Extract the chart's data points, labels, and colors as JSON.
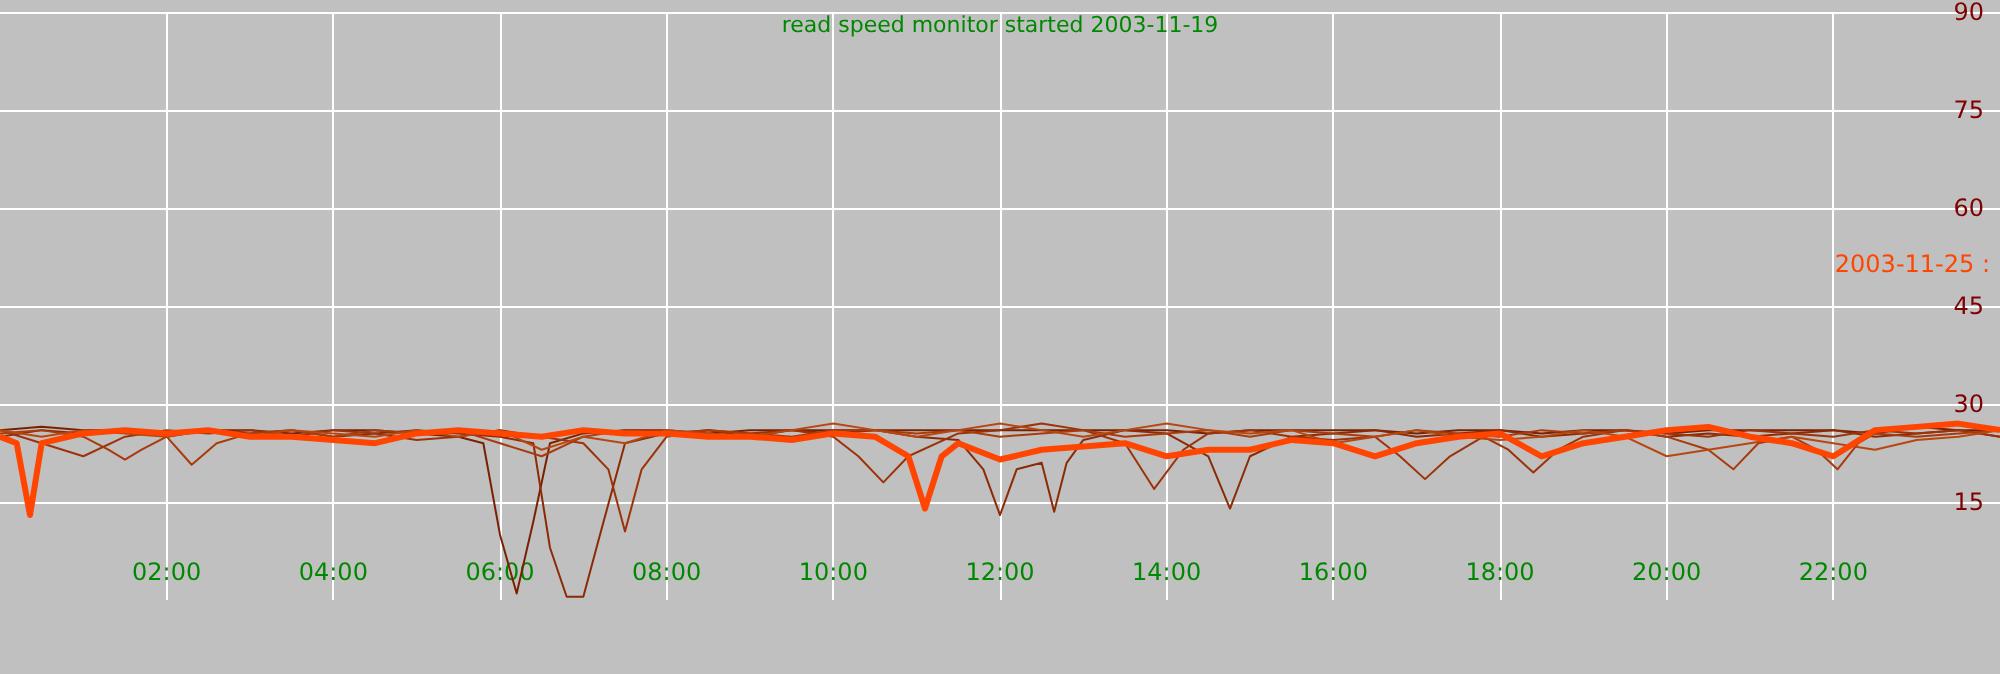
{
  "chart_data": {
    "type": "line",
    "title": "read speed monitor started 2003-11-19",
    "xlim": [
      0,
      24
    ],
    "xticks": [
      {
        "value": 2,
        "label": "02:00"
      },
      {
        "value": 4,
        "label": "04:00"
      },
      {
        "value": 6,
        "label": "06:00"
      },
      {
        "value": 8,
        "label": "08:00"
      },
      {
        "value": 10,
        "label": "10:00"
      },
      {
        "value": 12,
        "label": "12:00"
      },
      {
        "value": 14,
        "label": "14:00"
      },
      {
        "value": 16,
        "label": "16:00"
      },
      {
        "value": 18,
        "label": "18:00"
      },
      {
        "value": 20,
        "label": "20:00"
      },
      {
        "value": 22,
        "label": "22:00"
      }
    ],
    "ylim": [
      0,
      90
    ],
    "yticks": [
      15,
      30,
      45,
      60,
      75,
      90
    ],
    "grid": true,
    "legend": "right",
    "marker": "none",
    "line_style": "solid",
    "series": [
      {
        "color": "#7a2000",
        "x": [
          0,
          0.5,
          1,
          1.5,
          2,
          2.5,
          3,
          3.5,
          4,
          4.5,
          5,
          5.5,
          5.8,
          6.0,
          6.2,
          6.4,
          6.6,
          7,
          7.5,
          8,
          8.5,
          9,
          9.5,
          10,
          10.5,
          11,
          11.5,
          12,
          12.5,
          13,
          13.5,
          14,
          14.5,
          15,
          15.5,
          16,
          16.5,
          17,
          17.5,
          18,
          18.5,
          19,
          19.5,
          20,
          20.5,
          21,
          21.5,
          22,
          22.5,
          23,
          23.5,
          24
        ],
        "values": [
          26,
          26.5,
          26,
          26,
          25.5,
          26,
          26,
          25.5,
          26,
          26,
          25.5,
          25,
          24,
          10,
          1,
          12,
          24,
          25.5,
          26,
          26,
          25.5,
          26,
          26,
          26,
          26,
          26,
          26,
          26,
          26,
          26,
          26,
          26,
          25.5,
          26,
          26,
          26,
          26,
          25.5,
          26,
          26,
          25.5,
          26,
          26,
          25.5,
          26,
          26,
          26,
          26,
          25.5,
          26.5,
          26,
          26
        ]
      },
      {
        "color": "#8b2a05",
        "x": [
          0,
          0.5,
          1,
          1.5,
          2,
          2.5,
          3,
          3.5,
          4,
          4.5,
          5,
          5.5,
          6,
          6.4,
          6.6,
          6.8,
          7.0,
          7.2,
          7.5,
          8,
          8.5,
          9,
          9.5,
          10,
          10.5,
          11,
          11.5,
          11.8,
          12.0,
          12.2,
          12.5,
          12.65,
          12.8,
          13,
          13.5,
          14,
          14.5,
          14.76,
          15,
          15.5,
          16,
          16.5,
          17,
          17.5,
          18,
          18.5,
          19,
          19.5,
          20,
          20.5,
          21,
          21.5,
          22,
          22.5,
          23,
          23.5,
          24
        ],
        "values": [
          25,
          26,
          25.5,
          26,
          25,
          26,
          25.5,
          26,
          25,
          25.5,
          26,
          25.5,
          25,
          24,
          8,
          0.5,
          0.5,
          10,
          24,
          25.5,
          26,
          25,
          26,
          25.5,
          26,
          25,
          24.5,
          20,
          13,
          20,
          21,
          13.5,
          21,
          24.5,
          26,
          25.5,
          22,
          14,
          22,
          25,
          25.5,
          26,
          25,
          25.5,
          26,
          25,
          25.5,
          26,
          25,
          25.5,
          25,
          25.5,
          26,
          25,
          25.5,
          26,
          25
        ]
      },
      {
        "color": "#9c3208",
        "x": [
          0,
          0.5,
          1,
          1.5,
          2,
          2.5,
          3,
          3.5,
          4,
          4.5,
          5,
          5.5,
          6,
          6.5,
          7,
          7.3,
          7.5,
          7.7,
          8,
          8.5,
          9,
          9.5,
          10,
          10.3,
          10.6,
          10.9,
          11.5,
          12,
          12.5,
          13,
          13.5,
          13.85,
          14.2,
          14.5,
          15,
          15.5,
          16,
          16.5,
          16.8,
          17.1,
          17.4,
          17.8,
          18.1,
          18.4,
          18.7,
          19,
          19.5,
          20,
          20.5,
          21,
          21.5,
          22,
          22.5,
          23,
          23.5,
          24
        ],
        "values": [
          26,
          24,
          22,
          25,
          26,
          25.5,
          26,
          25,
          26,
          25.5,
          24.5,
          25,
          26,
          25,
          24,
          20,
          10.5,
          20,
          25,
          26,
          25.5,
          26,
          25,
          22,
          18,
          22,
          25.5,
          26,
          27,
          26,
          24,
          17,
          23,
          25.5,
          26,
          25,
          24.5,
          25,
          22,
          18.5,
          22,
          25,
          23,
          19.5,
          23,
          25,
          26,
          25.5,
          25,
          26,
          25.5,
          25,
          26,
          25.5,
          26,
          25
        ]
      },
      {
        "color": "#a83a0c",
        "x": [
          0,
          0.5,
          1,
          1.3,
          1.5,
          1.7,
          2,
          2.3,
          2.6,
          3,
          3.5,
          4,
          4.5,
          5,
          5.5,
          6,
          6.5,
          7,
          7.5,
          8,
          8.5,
          9,
          9.5,
          10,
          10.5,
          11,
          11.5,
          12,
          12.5,
          13,
          13.5,
          14,
          14.5,
          15,
          15.5,
          16,
          16.5,
          17,
          17.5,
          18,
          18.5,
          19,
          19.5,
          20,
          20.5,
          20.8,
          21.1,
          21.5,
          21.8,
          22.05,
          22.3,
          22.5,
          23,
          23.5,
          24
        ],
        "values": [
          25.5,
          26,
          25,
          23,
          21.5,
          23,
          25,
          20.7,
          24,
          25.5,
          26,
          25,
          26,
          25.5,
          26,
          24,
          22,
          25,
          26,
          25.5,
          26,
          25.5,
          25,
          26,
          26,
          25.5,
          26,
          25,
          25.5,
          26,
          25,
          25.5,
          26,
          25,
          26,
          25.5,
          25,
          26,
          25.5,
          25,
          26,
          25.5,
          26,
          25,
          23,
          20,
          24,
          25,
          23,
          20,
          24,
          25.5,
          25,
          25.5,
          26
        ]
      },
      {
        "color": "#b8460f",
        "x": [
          0,
          0.5,
          1,
          1.5,
          2,
          2.5,
          3,
          3.5,
          4,
          4.5,
          5,
          5.5,
          6,
          6.5,
          7,
          7.5,
          8,
          8.5,
          9,
          9.5,
          10,
          10.5,
          11,
          11.5,
          12,
          12.5,
          13,
          13.5,
          14,
          14.5,
          15,
          15.5,
          16,
          16.5,
          17,
          17.5,
          18,
          18.5,
          19,
          19.5,
          20,
          20.5,
          21,
          21.5,
          22,
          22.5,
          23,
          23.5,
          24
        ],
        "values": [
          26,
          25,
          26,
          25.5,
          25,
          26,
          25,
          26,
          25.5,
          25,
          26,
          25,
          26,
          23,
          25,
          24,
          26,
          25.5,
          25,
          26,
          27,
          26,
          25,
          26,
          27,
          26,
          25,
          26,
          27,
          26,
          25.5,
          26,
          24,
          25,
          26,
          25,
          24.5,
          25,
          26,
          25,
          22,
          23,
          24,
          25,
          24,
          23,
          24.5,
          25,
          26
        ]
      },
      {
        "name": "2003-11-25 :",
        "color": "#ff4500",
        "x": [
          0,
          0.2,
          0.36,
          0.5,
          1,
          1.5,
          2,
          2.5,
          3,
          3.5,
          4,
          4.5,
          5,
          5.5,
          6,
          6.5,
          7,
          7.5,
          8,
          8.5,
          9,
          9.5,
          10,
          10.5,
          10.9,
          11.1,
          11.3,
          11.5,
          12,
          12.5,
          13,
          13.5,
          14,
          14.5,
          15,
          15.5,
          16,
          16.5,
          17,
          17.5,
          18,
          18.5,
          19,
          19.5,
          20,
          20.5,
          21,
          21.5,
          22,
          22.5,
          23,
          23.5,
          24
        ],
        "values": [
          25,
          24,
          13,
          24,
          25.5,
          26,
          25.5,
          26,
          25,
          25,
          24.5,
          24,
          25.5,
          26,
          25.5,
          25,
          26,
          25.5,
          25.5,
          25,
          25,
          24.5,
          25.5,
          25,
          22,
          14,
          22,
          24,
          21.5,
          23,
          23.5,
          24,
          22,
          23,
          23,
          24.5,
          24,
          22,
          24,
          25,
          25.5,
          22,
          24,
          25,
          26,
          26.5,
          25,
          24,
          22,
          26,
          26.5,
          27,
          26
        ]
      }
    ]
  }
}
